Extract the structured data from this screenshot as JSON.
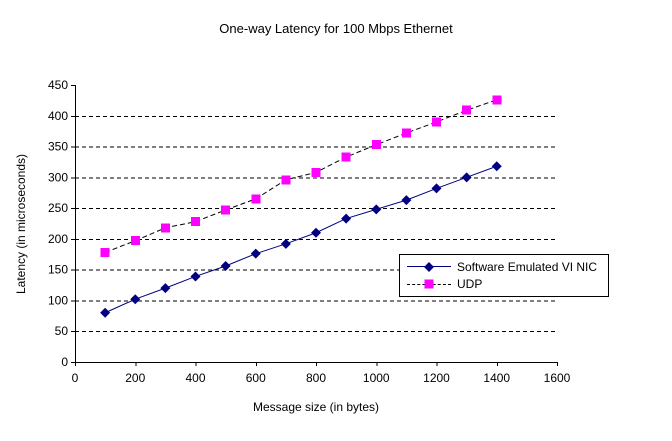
{
  "chart_data": {
    "type": "line",
    "title": "One-way Latency for 100 Mbps Ethernet",
    "xlabel": "Message size (in bytes)",
    "ylabel": "Latency (in microseconds)",
    "xlim": [
      0,
      1600
    ],
    "ylim": [
      0,
      450
    ],
    "x_ticks": [
      0,
      200,
      400,
      600,
      800,
      1000,
      1200,
      1400,
      1600
    ],
    "y_ticks": [
      0,
      50,
      100,
      150,
      200,
      250,
      300,
      350,
      400,
      450
    ],
    "grid": "horizontal-dashed",
    "legend_position": "inside-lower-right",
    "x": [
      100,
      200,
      300,
      400,
      500,
      600,
      700,
      800,
      900,
      1000,
      1100,
      1200,
      1300,
      1400
    ],
    "series": [
      {
        "name": "Software Emulated VI NIC",
        "marker": "diamond",
        "marker_color": "#000080",
        "line_color": "#000080",
        "line_style": "solid",
        "values": [
          80,
          102,
          120,
          139,
          156,
          176,
          192,
          210,
          233,
          248,
          263,
          282,
          300,
          318
        ]
      },
      {
        "name": "UDP",
        "marker": "square",
        "marker_color": "#FF00FF",
        "line_color": "#000000",
        "line_style": "dashed",
        "values": [
          178,
          197,
          218,
          228,
          247,
          265,
          296,
          308,
          333,
          353,
          372,
          390,
          409,
          426
        ]
      }
    ],
    "colors": {
      "axis": "#000000",
      "gridline": "#000000",
      "background": "#FFFFFF"
    }
  }
}
